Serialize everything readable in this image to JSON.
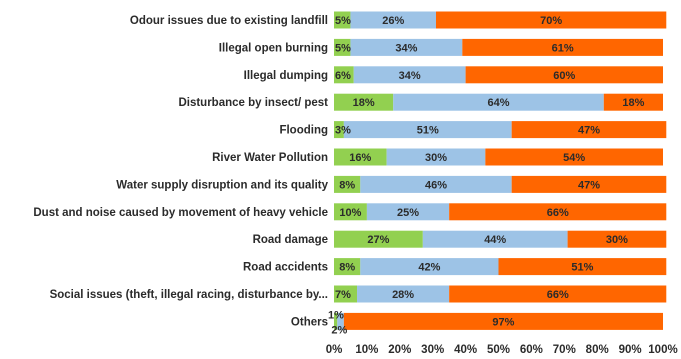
{
  "chart_data": {
    "type": "bar",
    "orientation": "horizontal",
    "stacked": true,
    "categories": [
      "Odour issues due to existing landfill",
      "Illegal open burning",
      "Illegal dumping",
      "Disturbance by insect/ pest",
      "Flooding",
      "River Water Pollution",
      "Water supply disruption and its quality",
      "Dust and noise caused by movement of heavy vehicle",
      "Road damage",
      "Road accidents",
      "Social issues (theft, illegal racing, disturbance by...",
      "Others"
    ],
    "series": [
      {
        "color": "#92d050",
        "values": [
          5,
          5,
          6,
          18,
          3,
          16,
          8,
          10,
          27,
          8,
          7,
          1
        ],
        "labels": [
          "5%",
          "5%",
          "6%",
          "18%",
          "3%",
          "16%",
          "8%",
          "10%",
          "27%",
          "8%",
          "7%",
          "1%"
        ]
      },
      {
        "color": "#9dc3e6",
        "values": [
          26,
          34,
          34,
          64,
          51,
          30,
          46,
          25,
          44,
          42,
          28,
          2
        ],
        "labels": [
          "26%",
          "34%",
          "34%",
          "64%",
          "51%",
          "30%",
          "46%",
          "25%",
          "44%",
          "42%",
          "28%",
          "2%"
        ]
      },
      {
        "color": "#ff6600",
        "values": [
          70,
          61,
          60,
          18,
          47,
          54,
          47,
          66,
          30,
          51,
          66,
          97
        ],
        "labels": [
          "70%",
          "61%",
          "60%",
          "18%",
          "47%",
          "54%",
          "47%",
          "66%",
          "30%",
          "51%",
          "66%",
          "97%"
        ]
      }
    ],
    "xlim": [
      0,
      100
    ],
    "x_ticks": [
      "0%",
      "10%",
      "20%",
      "30%",
      "40%",
      "50%",
      "60%",
      "70%",
      "80%",
      "90%",
      "100%"
    ],
    "grid": false,
    "legend": "none"
  }
}
